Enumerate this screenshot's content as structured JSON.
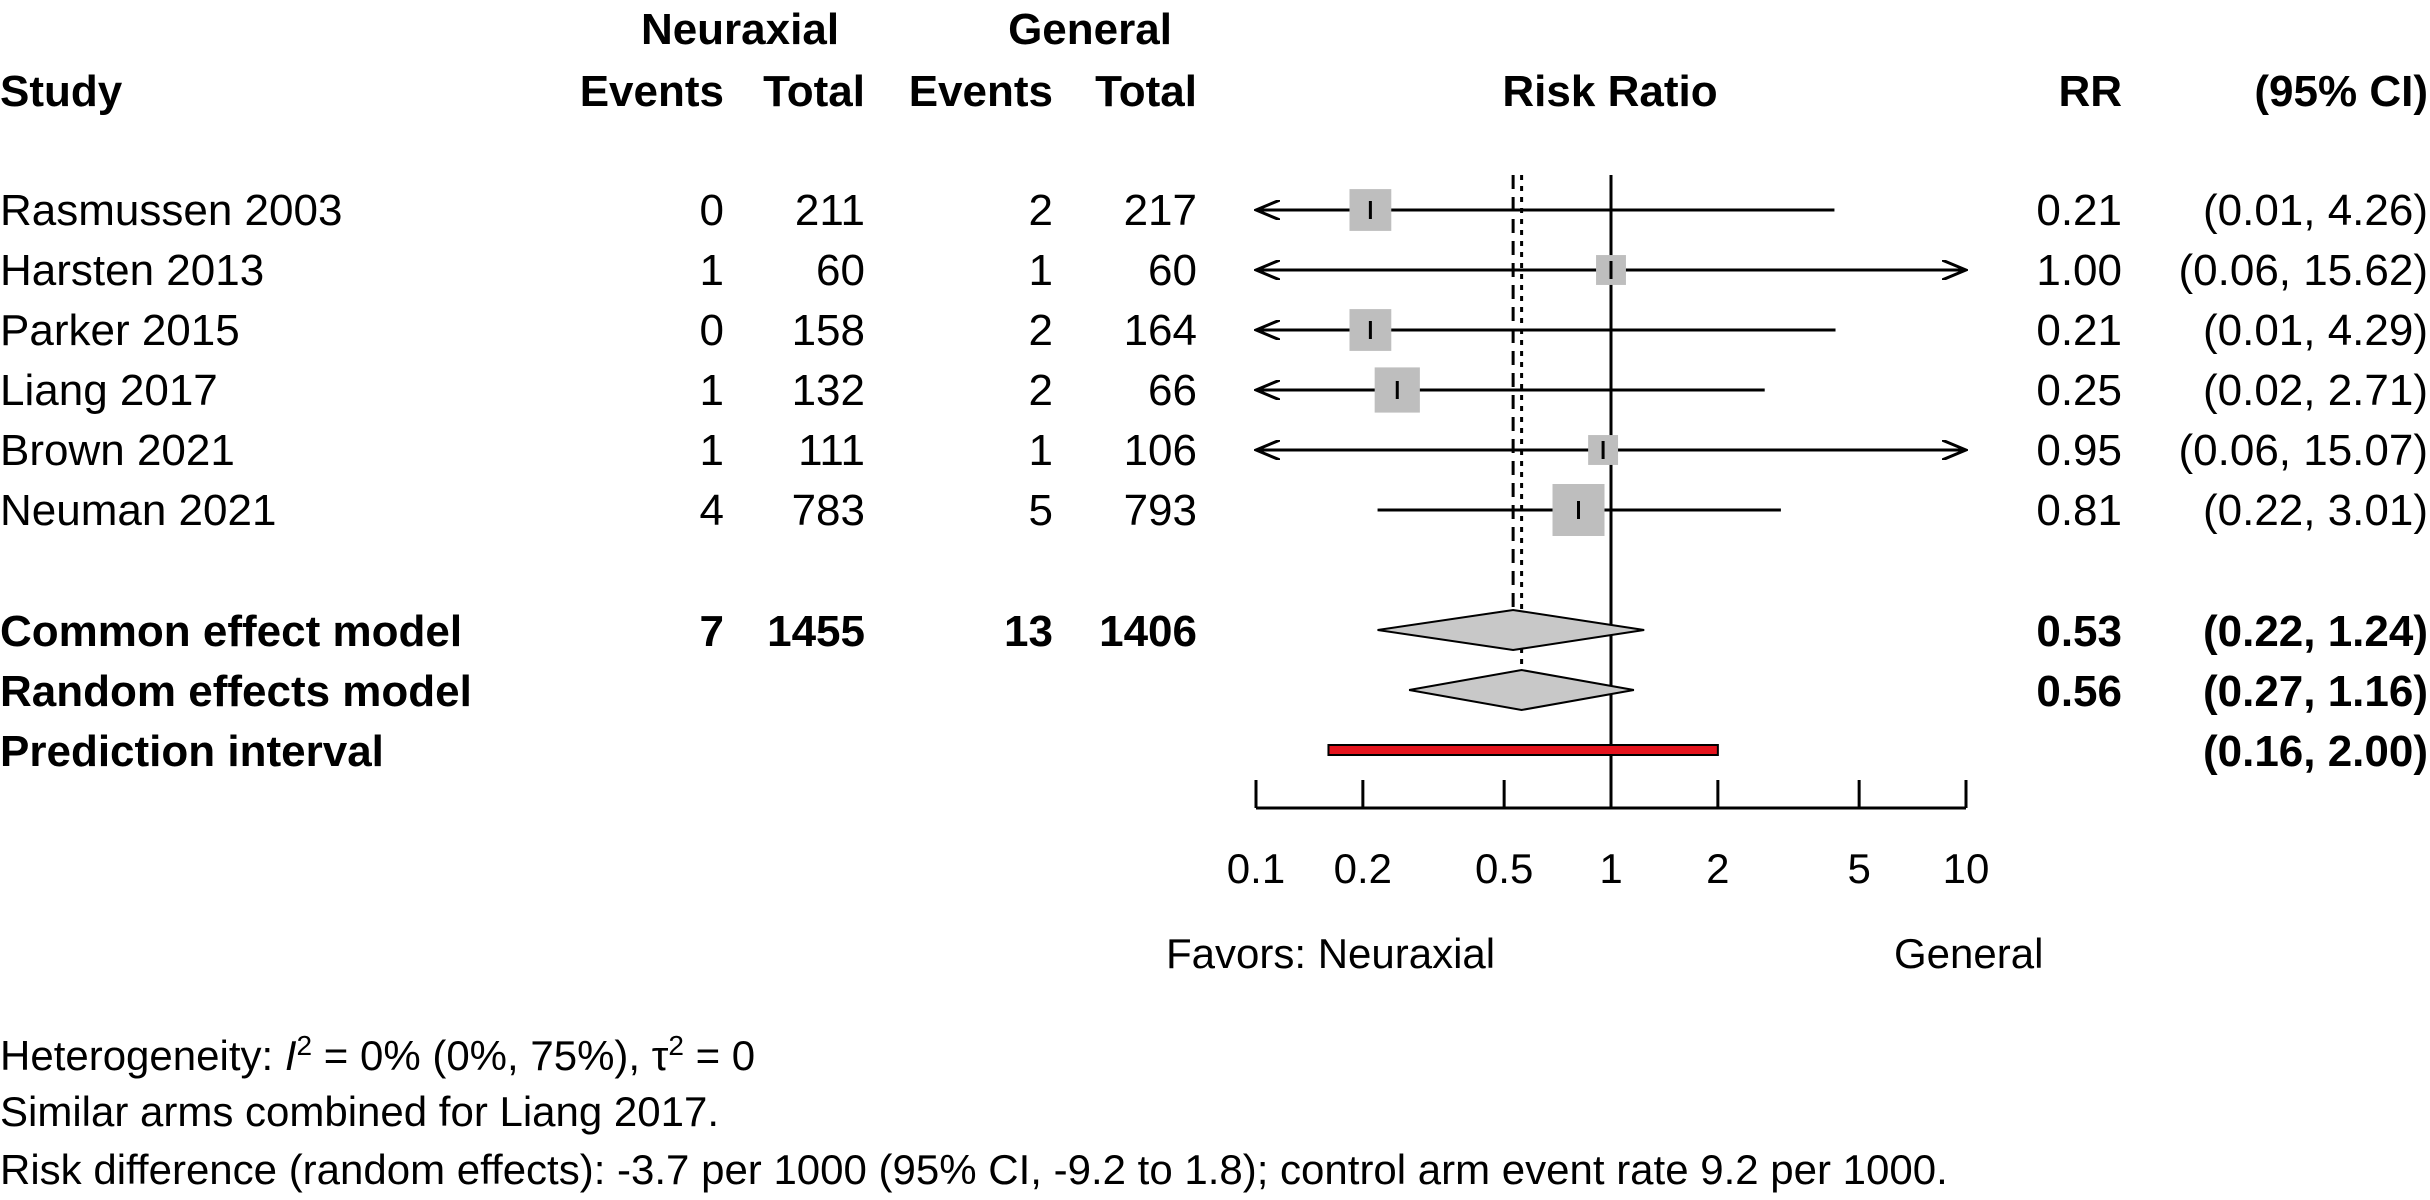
{
  "chart_data": {
    "type": "forest",
    "measure": "Risk Ratio",
    "group_labels": {
      "experimental": "Neuraxial",
      "control": "General"
    },
    "column_headers": {
      "study": "Study",
      "events": "Events",
      "total": "Total",
      "rr": "RR",
      "ci": "(95% CI)"
    },
    "studies": [
      {
        "name": "Rasmussen 2003",
        "e_events": "0",
        "e_total": "211",
        "c_events": "2",
        "c_total": "217",
        "rr": 0.21,
        "lower": 0.01,
        "upper": 4.26,
        "rr_text": "0.21",
        "ci_text": "(0.01,  4.26)",
        "weight": 0.7
      },
      {
        "name": "Harsten 2013",
        "e_events": "1",
        "e_total": "60",
        "c_events": "1",
        "c_total": "60",
        "rr": 1.0,
        "lower": 0.06,
        "upper": 15.62,
        "rr_text": "1.00",
        "ci_text": "(0.06, 15.62)",
        "weight": 0.35
      },
      {
        "name": "Parker 2015",
        "e_events": "0",
        "e_total": "158",
        "c_events": "2",
        "c_total": "164",
        "rr": 0.21,
        "lower": 0.01,
        "upper": 4.29,
        "rr_text": "0.21",
        "ci_text": "(0.01,  4.29)",
        "weight": 0.7
      },
      {
        "name": "Liang 2017",
        "e_events": "1",
        "e_total": "132",
        "c_events": "2",
        "c_total": "66",
        "rr": 0.25,
        "lower": 0.02,
        "upper": 2.71,
        "rr_text": "0.25",
        "ci_text": "(0.02,  2.71)",
        "weight": 0.8
      },
      {
        "name": "Brown 2021",
        "e_events": "1",
        "e_total": "111",
        "c_events": "1",
        "c_total": "106",
        "rr": 0.95,
        "lower": 0.06,
        "upper": 15.07,
        "rr_text": "0.95",
        "ci_text": "(0.06, 15.07)",
        "weight": 0.35
      },
      {
        "name": "Neuman 2021",
        "e_events": "4",
        "e_total": "783",
        "c_events": "5",
        "c_total": "793",
        "rr": 0.81,
        "lower": 0.22,
        "upper": 3.01,
        "rr_text": "0.81",
        "ci_text": "(0.22,  3.01)",
        "weight": 1.0
      }
    ],
    "common_effect": {
      "label": "Common effect model",
      "e_events": "7",
      "e_total": "1455",
      "c_events": "13",
      "c_total": "1406",
      "rr": 0.53,
      "lower": 0.22,
      "upper": 1.24,
      "rr_text": "0.53",
      "ci_text": "(0.22,  1.24)"
    },
    "random_effects": {
      "label": "Random effects model",
      "rr": 0.56,
      "lower": 0.27,
      "upper": 1.16,
      "rr_text": "0.56",
      "ci_text": "(0.27,  1.16)"
    },
    "prediction_interval": {
      "label": "Prediction interval",
      "lower": 0.16,
      "upper": 2.0,
      "ci_text": "(0.16,  2.00)"
    },
    "x_scale": "log",
    "xlim": [
      0.1,
      10
    ],
    "x_ticks": [
      0.1,
      0.2,
      0.5,
      1,
      2,
      5,
      10
    ],
    "x_tick_labels": [
      "0.1",
      "0.2",
      "0.5",
      "1",
      "2",
      "5",
      "10"
    ],
    "favors_left": "Favors: Neuraxial",
    "favors_right": "General",
    "colors": {
      "square": "#bebebe",
      "diamond": "#c8c8c8",
      "prediction": "#e5141e",
      "line": "#000000"
    }
  },
  "footer": {
    "heterogeneity_prefix": "Heterogeneity: ",
    "i2_symbol": "I",
    "i2_value": " = 0% (0%, 75%), ",
    "tau_symbol": "τ",
    "tau_value": " = 0",
    "note": "Similar arms combined for Liang 2017.",
    "risk_difference": "Risk difference (random effects): -3.7 per 1000 (95% CI, -9.2 to 1.8); control arm event rate 9.2 per 1000."
  }
}
